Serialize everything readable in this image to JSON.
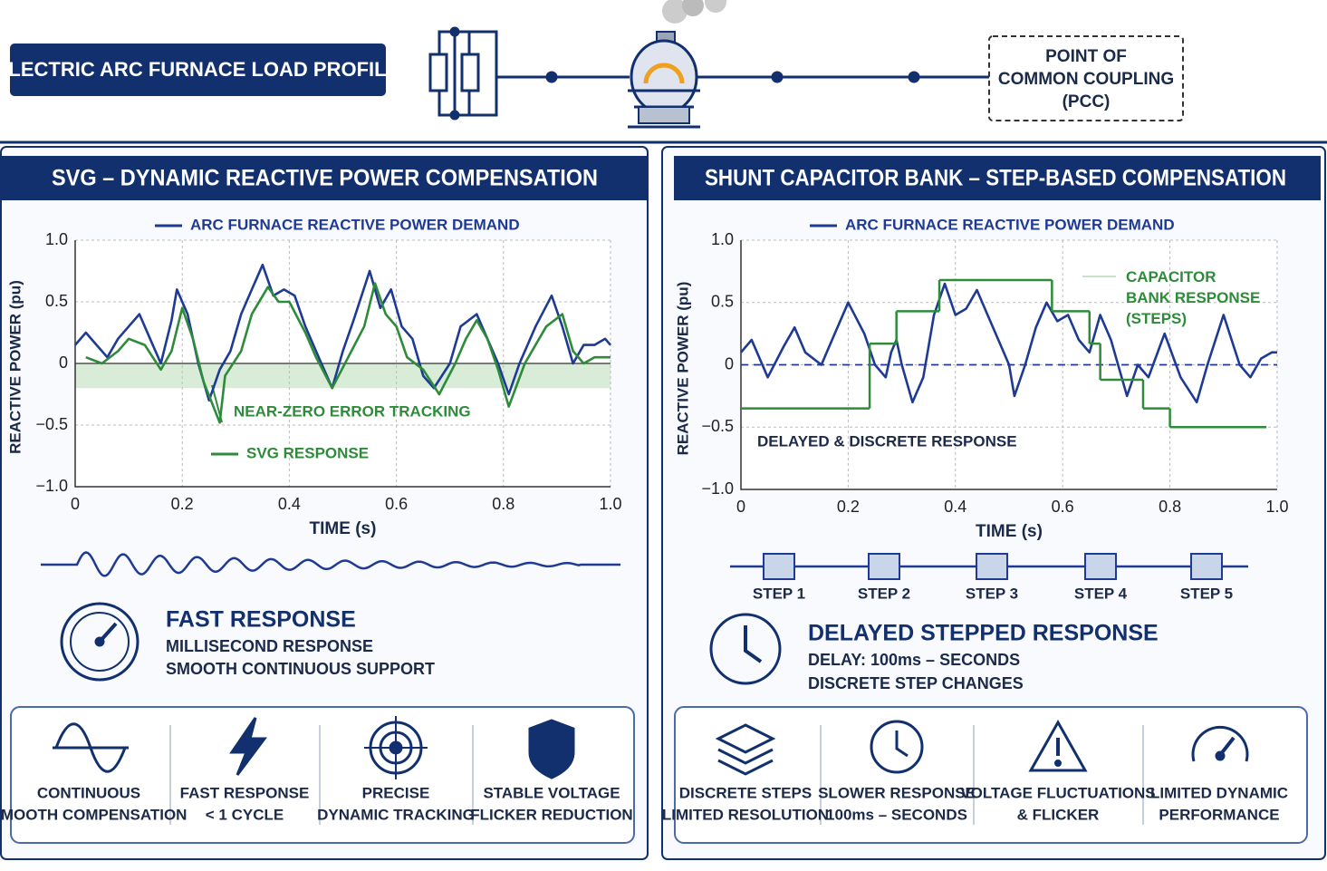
{
  "header": {
    "title": "ELECTRIC ARC FURNACE LOAD PROFILE",
    "pcc_label": [
      "POINT OF",
      "COMMON COUPLING",
      "(PCC)"
    ]
  },
  "left_panel": {
    "title": "SVG – DYNAMIC REACTIVE POWER COMPENSATION",
    "summary": {
      "heading": "FAST RESPONSE",
      "lines": [
        "MILLISECOND RESPONSE",
        "SMOOTH CONTINUOUS SUPPORT"
      ]
    },
    "features": [
      {
        "lines": [
          "CONTINUOUS",
          "SMOOTH COMPENSATION"
        ]
      },
      {
        "lines": [
          "FAST RESPONSE",
          "< 1 CYCLE"
        ]
      },
      {
        "lines": [
          "PRECISE",
          "DYNAMIC TRACKING"
        ]
      },
      {
        "lines": [
          "STABLE VOLTAGE",
          "FLICKER REDUCTION"
        ]
      }
    ]
  },
  "right_panel": {
    "title": "SHUNT CAPACITOR BANK – STEP-BASED COMPENSATION",
    "steps": [
      "STEP 1",
      "STEP 2",
      "STEP 3",
      "STEP 4",
      "STEP 5"
    ],
    "summary": {
      "heading": "DELAYED STEPPED RESPONSE",
      "lines": [
        "DELAY: 100ms – SECONDS",
        "DISCRETE STEP CHANGES"
      ]
    },
    "features": [
      {
        "lines": [
          "DISCRETE STEPS",
          "LIMITED RESOLUTION"
        ]
      },
      {
        "lines": [
          "SLOWER RESPONSE",
          "100ms – SECONDS"
        ]
      },
      {
        "lines": [
          "VOLTAGE FLUCTUATIONS",
          "& FLICKER"
        ]
      },
      {
        "lines": [
          "LIMITED DYNAMIC",
          "PERFORMANCE"
        ]
      }
    ]
  },
  "chart_data": [
    {
      "type": "line",
      "x_label": "TIME (s)",
      "y_label": "REACTIVE POWER (pu)",
      "xlim": [
        0,
        1
      ],
      "ylim": [
        -1,
        1
      ],
      "xticks": [
        0,
        0.2,
        0.4,
        0.6,
        0.8,
        {
          "value": 1,
          "label": "1.0"
        }
      ],
      "yticks": [
        {
          "value": -1,
          "label": "−1.0"
        },
        {
          "value": -0.5,
          "label": "−0.5"
        },
        0,
        0.5,
        {
          "value": 1,
          "label": "1.0"
        }
      ],
      "grid": true,
      "zero_line": "solid",
      "band": {
        "from": -0.2,
        "to": 0,
        "color": "#d8ecd8"
      },
      "annotation": "NEAR-ZERO ERROR TRACKING",
      "series": [
        {
          "name": "ARC FURNACE REACTIVE POWER DEMAND",
          "color": "#1f3a93",
          "x": [
            0,
            0.02,
            0.04,
            0.06,
            0.08,
            0.1,
            0.12,
            0.14,
            0.16,
            0.18,
            0.19,
            0.21,
            0.23,
            0.25,
            0.27,
            0.29,
            0.31,
            0.33,
            0.35,
            0.37,
            0.39,
            0.41,
            0.43,
            0.45,
            0.48,
            0.5,
            0.52,
            0.55,
            0.57,
            0.59,
            0.61,
            0.63,
            0.65,
            0.67,
            0.7,
            0.72,
            0.75,
            0.77,
            0.79,
            0.81,
            0.83,
            0.86,
            0.89,
            0.91,
            0.93,
            0.95,
            0.97,
            0.99,
            1
          ],
          "values": [
            0.15,
            0.25,
            0.15,
            0.05,
            0.2,
            0.3,
            0.4,
            0.2,
            0,
            0.35,
            0.6,
            0.4,
            0,
            -0.3,
            -0.05,
            0.1,
            0.4,
            0.6,
            0.8,
            0.55,
            0.6,
            0.55,
            0.3,
            0.1,
            -0.2,
            0.1,
            0.35,
            0.75,
            0.45,
            0.6,
            0.3,
            0.2,
            -0.1,
            -0.2,
            0,
            0.3,
            0.4,
            0.2,
            0,
            -0.25,
            0,
            0.3,
            0.55,
            0.3,
            0,
            0.15,
            0.15,
            0.2,
            0.15
          ]
        },
        {
          "name": "SVG RESPONSE",
          "color": "#2e8b3a",
          "x": [
            0.02,
            0.05,
            0.08,
            0.1,
            0.13,
            0.16,
            0.18,
            0.2,
            0.22,
            0.24,
            0.27,
            0.28,
            0.31,
            0.33,
            0.36,
            0.38,
            0.4,
            0.43,
            0.45,
            0.48,
            0.51,
            0.54,
            0.56,
            0.58,
            0.6,
            0.62,
            0.65,
            0.68,
            0.71,
            0.73,
            0.75,
            0.77,
            0.79,
            0.81,
            0.84,
            0.88,
            0.91,
            0.93,
            0.95,
            0.97,
            1
          ],
          "values": [
            0.05,
            0,
            0.1,
            0.2,
            0.15,
            -0.05,
            0.1,
            0.45,
            0.2,
            -0.15,
            -0.48,
            -0.1,
            0.1,
            0.4,
            0.62,
            0.5,
            0.5,
            0.25,
            0.05,
            -0.2,
            0.05,
            0.3,
            0.65,
            0.4,
            0.3,
            0.05,
            -0.05,
            -0.25,
            0,
            0.2,
            0.35,
            0.2,
            -0.05,
            -0.35,
            0,
            0.3,
            0.4,
            0.1,
            0,
            0.05,
            0.05
          ]
        }
      ]
    },
    {
      "type": "line",
      "x_label": "TIME (s)",
      "y_label": "REACTIVE POWER (pu)",
      "xlim": [
        0,
        1
      ],
      "ylim": [
        -1,
        1
      ],
      "xticks": [
        0,
        0.2,
        0.4,
        0.6,
        0.8,
        {
          "value": 1,
          "label": "1.0"
        }
      ],
      "yticks": [
        {
          "value": -1,
          "label": "−1.0"
        },
        {
          "value": -0.5,
          "label": "−0.5"
        },
        0,
        0.5,
        {
          "value": 1,
          "label": "1.0"
        }
      ],
      "grid": true,
      "zero_line": "dashed",
      "annotation": "DELAYED & DISCRETE RESPONSE",
      "series": [
        {
          "name": "ARC FURNACE REACTIVE POWER DEMAND",
          "color": "#1f3a93",
          "x": [
            0,
            0.02,
            0.05,
            0.08,
            0.1,
            0.12,
            0.15,
            0.17,
            0.2,
            0.23,
            0.25,
            0.27,
            0.28,
            0.29,
            0.3,
            0.32,
            0.34,
            0.36,
            0.38,
            0.4,
            0.42,
            0.44,
            0.46,
            0.48,
            0.5,
            0.51,
            0.53,
            0.55,
            0.57,
            0.59,
            0.61,
            0.63,
            0.65,
            0.67,
            0.69,
            0.71,
            0.72,
            0.74,
            0.76,
            0.79,
            0.82,
            0.85,
            0.87,
            0.9,
            0.93,
            0.95,
            0.97,
            0.99,
            1
          ],
          "values": [
            0.1,
            0.2,
            -0.1,
            0.15,
            0.3,
            0.1,
            0,
            0.2,
            0.5,
            0.25,
            0,
            -0.1,
            0.1,
            0.2,
            0,
            -0.3,
            -0.1,
            0.4,
            0.65,
            0.4,
            0.45,
            0.6,
            0.4,
            0.2,
            0,
            -0.25,
            0,
            0.3,
            0.5,
            0.35,
            0.4,
            0.2,
            0.1,
            0.4,
            0.2,
            -0.1,
            -0.25,
            0,
            -0.1,
            0.25,
            -0.1,
            -0.3,
            0,
            0.4,
            0,
            -0.1,
            0.05,
            0.1,
            0.1
          ]
        },
        {
          "name": "CAPACITOR BANK RESPONSE (STEPS)",
          "color": "#2e8b3a",
          "step": true,
          "x": [
            0,
            0.24,
            0.29,
            0.37,
            0.58,
            0.65,
            0.67,
            0.75,
            0.8,
            0.98
          ],
          "values": [
            -0.35,
            0.17,
            0.43,
            0.68,
            0.43,
            0.17,
            -0.12,
            -0.35,
            -0.5,
            -0.5
          ]
        }
      ]
    }
  ]
}
